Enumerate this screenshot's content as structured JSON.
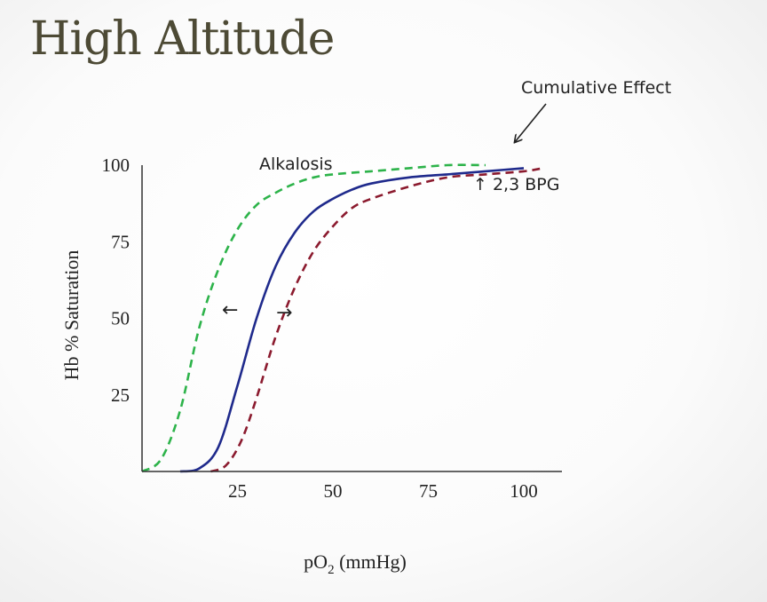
{
  "slide": {
    "title": "High Altitude"
  },
  "chart_data": {
    "type": "line",
    "xlabel": "pO",
    "xlabel_sub": "2",
    "xlabel_unit": " (mmHg)",
    "ylabel": "Hb % Saturation",
    "xlim": [
      0,
      110
    ],
    "ylim": [
      0,
      100
    ],
    "xticks": [
      25,
      50,
      75,
      100
    ],
    "yticks": [
      25,
      50,
      75,
      100
    ],
    "grid": false,
    "series": [
      {
        "name": "Alkalosis",
        "style": "dashed",
        "color": "#2db34a",
        "x": [
          0,
          5,
          10,
          15,
          20,
          25,
          30,
          35,
          40,
          45,
          50,
          60,
          70,
          80,
          90
        ],
        "y": [
          0,
          4,
          20,
          47,
          66,
          79,
          87,
          91,
          94,
          96,
          97,
          98,
          99,
          100,
          100
        ]
      },
      {
        "name": "Cumulative Effect",
        "style": "solid",
        "color": "#1f2a8c",
        "x": [
          10,
          15,
          20,
          25,
          30,
          35,
          40,
          45,
          50,
          55,
          60,
          70,
          80,
          90,
          100
        ],
        "y": [
          0,
          1,
          8,
          28,
          50,
          67,
          78,
          85,
          89,
          92,
          94,
          96,
          97,
          98,
          99
        ]
      },
      {
        "name": "↑ 2,3 BPG",
        "style": "dashed",
        "color": "#8b1a2e",
        "x": [
          18,
          22,
          26,
          30,
          35,
          40,
          45,
          50,
          55,
          60,
          70,
          80,
          90,
          100,
          105
        ],
        "y": [
          0,
          2,
          10,
          24,
          44,
          60,
          72,
          80,
          86,
          89,
          93,
          96,
          97,
          98,
          99
        ]
      }
    ],
    "annotations": [
      {
        "text": "Alkalosis"
      },
      {
        "text": "Cumulative Effect"
      },
      {
        "text": "↑ 2,3 BPG"
      },
      {
        "text": "←"
      },
      {
        "text": "→"
      }
    ]
  }
}
